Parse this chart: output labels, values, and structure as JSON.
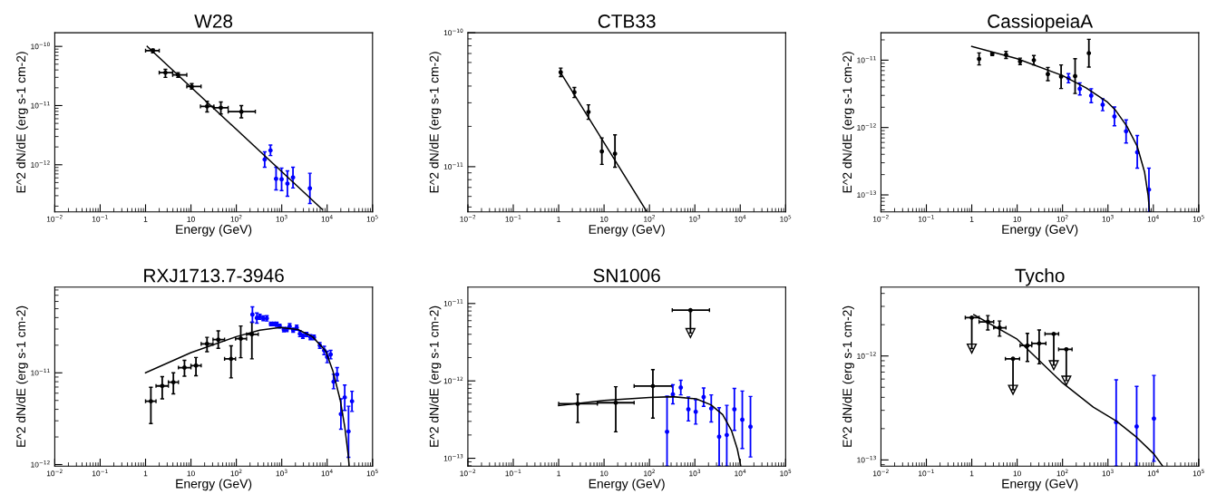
{
  "chart_data": [
    {
      "type": "scatter",
      "marker": "circle",
      "title": "W28",
      "xlabel": "Energy (GeV)",
      "ylabel": "E^2 dN/dE (erg s-1 cm-2)",
      "log": "xy",
      "xlim": [
        0.01,
        100000
      ],
      "ylim": [
        1.6e-13,
        1.7e-10
      ],
      "xticks": [
        {
          "value": 0.01,
          "label": "10$^{−2}$"
        },
        {
          "value": 0.1,
          "label": "10$^{−1}$"
        },
        1,
        10,
        {
          "value": 100,
          "label": "10$^{2}$"
        },
        {
          "value": 1000,
          "label": "10$^{3}$"
        },
        {
          "value": 10000,
          "label": "10$^{4}$"
        },
        {
          "value": 100000,
          "label": "10$^{5}$"
        }
      ],
      "yticks": [
        {
          "value": 1e-12,
          "label": "10$^{−12}$"
        },
        {
          "value": 1e-11,
          "label": "10$^{−11}$"
        },
        {
          "value": 1e-10,
          "label": "10$^{−10}$"
        }
      ],
      "series": [
        {
          "type": "scatter",
          "color": "#000000",
          "x": [
            1.45,
            2.74,
            5.2,
            10.4,
            22.7,
            45.6,
            129
          ],
          "values": [
            8.5e-11,
            3.6e-11,
            3.3e-11,
            2.1e-11,
            9.7e-12,
            9.2e-12,
            7.9e-12
          ],
          "errors": [
            [
              7.8e-11,
              9e-11
            ],
            [
              3e-11,
              4.1e-11
            ],
            [
              3e-11,
              3.6e-11
            ],
            [
              1.9e-11,
              2.35e-11
            ],
            [
              7.8e-12,
              1.18e-11
            ],
            [
              7.2e-12,
              1.15e-11
            ],
            [
              6.2e-12,
              1e-11
            ]
          ],
          "xerrors": [
            [
              1.0,
              2.0
            ],
            [
              2.0,
              3.96
            ],
            [
              3.96,
              8.1
            ],
            [
              8.1,
              16.7
            ],
            [
              16.2,
              32
            ],
            [
              32,
              66
            ],
            [
              66,
              262
            ]
          ]
        },
        {
          "type": "scatter",
          "color": "#0000ff",
          "x": [
            421,
            565,
            750,
            993,
            1334,
            1770,
            4170
          ],
          "values": [
            1.23e-12,
            1.75e-12,
            5.8e-13,
            5.7e-13,
            4.8e-13,
            6.1e-13,
            4e-13
          ],
          "errors": [
            [
              9.1e-13,
              1.65e-12
            ],
            [
              1.43e-12,
              2.15e-12
            ],
            [
              3.76e-13,
              9.1e-13
            ],
            [
              3.67e-13,
              8.8e-13
            ],
            [
              2.94e-13,
              7.9e-13
            ],
            [
              4.06e-13,
              9.1e-13
            ],
            [
              2.22e-13,
              7.2e-13
            ]
          ]
        },
        {
          "type": "line",
          "marker": "none",
          "color": "#000000",
          "x": [
            1.09,
            7800
          ],
          "values": [
            1e-10,
            1.76e-13
          ]
        }
      ]
    },
    {
      "type": "scatter",
      "marker": "circle",
      "title": "CTB33",
      "xlabel": "Energy (GeV)",
      "ylabel": "E^2 dN/dE (erg s-1 cm-2)",
      "log": "xy",
      "xlim": [
        0.01,
        100000
      ],
      "ylim": [
        4.6e-12,
        1e-10
      ],
      "xticks": [
        {
          "value": 0.01,
          "label": "10$^{−2}$"
        },
        {
          "value": 0.1,
          "label": "10$^{−1}$"
        },
        1,
        10,
        {
          "value": 100,
          "label": "10$^{2}$"
        },
        {
          "value": 1000,
          "label": "10$^{3}$"
        },
        {
          "value": 10000,
          "label": "10$^{4}$"
        },
        {
          "value": 100000,
          "label": "10$^{5}$"
        }
      ],
      "yticks": [
        {
          "value": 1e-11,
          "label": "10$^{−11}$"
        },
        {
          "value": 1e-10,
          "label": "10$^{−10}$"
        }
      ],
      "series": [
        {
          "type": "scatter",
          "color": "#000000",
          "x": [
            1.11,
            2.22,
            4.53,
            8.95,
            17.4
          ],
          "values": [
            5.07e-11,
            3.6e-11,
            2.56e-11,
            1.3e-11,
            1.25e-11
          ],
          "errors": [
            [
              4.71e-11,
              5.45e-11
            ],
            [
              3.28e-11,
              3.9e-11
            ],
            [
              2.26e-11,
              2.9e-11
            ],
            [
              1.04e-11,
              1.64e-11
            ],
            [
              9.9e-12,
              1.73e-11
            ]
          ]
        },
        {
          "type": "line",
          "marker": "none",
          "color": "#000000",
          "x": [
            1.08,
            85
          ],
          "values": [
            5.1e-11,
            4.69e-12
          ]
        }
      ]
    },
    {
      "type": "scatter",
      "marker": "circle",
      "title": "CassiopeiaA",
      "xlabel": "Energy (GeV)",
      "ylabel": "E^2 dN/dE (erg s-1 cm-2)",
      "log": "xy",
      "xlim": [
        0.01,
        100000
      ],
      "ylim": [
        5.6e-14,
        2.55e-11
      ],
      "xticks": [
        {
          "value": 0.01,
          "label": "10$^{−2}$"
        },
        {
          "value": 0.1,
          "label": "10$^{−1}$"
        },
        1,
        10,
        {
          "value": 100,
          "label": "10$^{2}$"
        },
        {
          "value": 1000,
          "label": "10$^{3}$"
        },
        {
          "value": 10000,
          "label": "10$^{4}$"
        },
        {
          "value": 100000,
          "label": "10$^{5}$"
        }
      ],
      "yticks": [
        {
          "value": 1e-13,
          "label": "10$^{−13}$"
        },
        {
          "value": 1e-12,
          "label": "10$^{−12}$"
        },
        {
          "value": 1e-11,
          "label": "10$^{−11}$"
        }
      ],
      "series": [
        {
          "type": "scatter",
          "color": "#000000",
          "x": [
            1.45,
            2.83,
            5.69,
            11.6,
            23.3,
            47.5,
            93,
            189,
            380
          ],
          "values": [
            1.04e-11,
            1.24e-11,
            1.2e-11,
            9.6e-12,
            1e-11,
            6.2e-12,
            5.7e-12,
            5.8e-12,
            1.27e-11
          ],
          "errors": [
            [
              8.5e-12,
              1.28e-11
            ],
            [
              1.17e-11,
              1.31e-11
            ],
            [
              1.06e-11,
              1.35e-11
            ],
            [
              8.6e-12,
              1.07e-11
            ],
            [
              8.5e-12,
              1.17e-11
            ],
            [
              4.95e-12,
              7.8e-12
            ],
            [
              3.8e-12,
              8.5e-12
            ],
            [
              3.2e-12,
              1.05e-11
            ],
            [
              7.9e-12,
              2.04e-11
            ]
          ]
        },
        {
          "type": "scatter",
          "color": "#0000ff",
          "x": [
            135,
            240,
            428,
            765,
            1390,
            2510,
            4420,
            8000
          ],
          "values": [
            5.4e-12,
            3.75e-12,
            2.97e-12,
            2.18e-12,
            1.46e-12,
            8.8e-13,
            4.3e-13,
            1.2e-13
          ],
          "errors": [
            [
              4.6e-12,
              6.3e-12
            ],
            [
              3.04e-12,
              4.6e-12
            ],
            [
              2.34e-12,
              3.77e-12
            ],
            [
              1.78e-12,
              2.68e-12
            ],
            [
              1.06e-12,
              2.02e-12
            ],
            [
              5.9e-13,
              1.3e-12
            ],
            [
              2.5e-13,
              7.6e-13
            ],
            [
              5.6e-14,
              2.5e-13
            ]
          ]
        },
        {
          "type": "line",
          "marker": "none",
          "color": "#000000",
          "x": [
            1,
            10,
            100,
            328,
            977,
            1445,
            2620,
            4420,
            6400,
            7650,
            8240
          ],
          "values": [
            1.6e-11,
            1.05e-11,
            5.9e-12,
            3.88e-12,
            2.38e-12,
            1.83e-12,
            1.04e-12,
            5.25e-13,
            2.19e-13,
            1e-13,
            5.7e-14
          ]
        }
      ]
    },
    {
      "type": "scatter",
      "marker": "circle",
      "title": "RXJ1713.7-3946",
      "xlabel": "Energy (GeV)",
      "ylabel": "E^2 dN/dE (erg s-1 cm-2)",
      "log": "xy",
      "xlim": [
        0.01,
        100000
      ],
      "ylim": [
        9.6e-13,
        8.6e-11
      ],
      "xticks": [
        {
          "value": 0.01,
          "label": "10$^{−2}$"
        },
        {
          "value": 0.1,
          "label": "10$^{−1}$"
        },
        1,
        10,
        {
          "value": 100,
          "label": "10$^{2}$"
        },
        {
          "value": 1000,
          "label": "10$^{3}$"
        },
        {
          "value": 10000,
          "label": "10$^{4}$"
        },
        {
          "value": 100000,
          "label": "10$^{5}$"
        }
      ],
      "yticks": [
        {
          "value": 1e-12,
          "label": "10$^{−12}$"
        },
        {
          "value": 1e-11,
          "label": "10$^{−11}$"
        }
      ],
      "series": [
        {
          "type": "scatter",
          "color": "#000000",
          "x": [
            1.31,
            2.33,
            4.1,
            7.2,
            12.9,
            22.6,
            40,
            76.5,
            125,
            220
          ],
          "values": [
            4.9e-12,
            7.2e-12,
            7.9e-12,
            1.14e-11,
            1.2e-11,
            2.07e-11,
            2.3e-11,
            1.42e-11,
            2.36e-11,
            2.63e-11
          ],
          "errors": [
            [
              2.8e-12,
              6.95e-12
            ],
            [
              5.2e-12,
              9.1e-12
            ],
            [
              5.9e-12,
              1e-11
            ],
            [
              9.2e-12,
              1.37e-11
            ],
            [
              9.3e-12,
              1.47e-11
            ],
            [
              1.7e-11,
              2.44e-11
            ],
            [
              1.85e-11,
              2.87e-11
            ],
            [
              8.8e-12,
              1.97e-11
            ],
            [
              1.46e-11,
              3.24e-11
            ],
            [
              1.42e-11,
              3.56e-11
            ]
          ],
          "xerrors": [
            [
              1,
              1.7
            ],
            [
              1.7,
              3.18
            ],
            [
              3.18,
              5.3
            ],
            [
              5.3,
              10
            ],
            [
              10,
              16.8
            ],
            [
              16.8,
              30.6
            ],
            [
              30.6,
              55
            ],
            [
              55,
              96
            ],
            [
              96,
              168
            ],
            [
              168,
              304
            ]
          ]
        },
        {
          "type": "scatter",
          "color": "#0000ff",
          "x": [
            226,
            283,
            328,
            392,
            469,
            577,
            670,
            777,
            901,
            1110,
            1288,
            1495,
            1785,
            2135,
            2510,
            2915,
            3530,
            4290,
            5130,
            6900,
            8610,
            10000,
            11950,
            13860,
            16560,
            20100,
            24400,
            29600,
            35300
          ],
          "values": [
            4.32e-11,
            3.96e-11,
            4.08e-11,
            3.93e-11,
            3.93e-11,
            3.41e-11,
            3.41e-11,
            3.37e-11,
            3.23e-11,
            2.96e-11,
            2.97e-11,
            3.22e-11,
            2.92e-11,
            3.1e-11,
            2.67e-11,
            2.52e-11,
            2.62e-11,
            2.45e-11,
            2.43e-11,
            1.99e-11,
            1.76e-11,
            1.49e-11,
            1.59e-11,
            8e-12,
            9.6e-12,
            3.55e-12,
            5.4e-12,
            2.3e-12,
            4.9e-12
          ],
          "errors": [
            [
              3.56e-11,
              5.24e-11
            ],
            [
              3.48e-11,
              4.5e-11
            ],
            [
              3.83e-11,
              4.34e-11
            ],
            [
              3.7e-11,
              4.18e-11
            ],
            [
              3.67e-11,
              4.2e-11
            ],
            [
              3.26e-11,
              3.56e-11
            ],
            [
              3.26e-11,
              3.56e-11
            ],
            [
              3.2e-11,
              3.56e-11
            ],
            [
              3.08e-11,
              3.39e-11
            ],
            [
              2.8e-11,
              3.13e-11
            ],
            [
              2.82e-11,
              3.13e-11
            ],
            [
              3.02e-11,
              3.44e-11
            ],
            [
              2.76e-11,
              3.08e-11
            ],
            [
              2.91e-11,
              3.31e-11
            ],
            [
              2.48e-11,
              2.87e-11
            ],
            [
              2.37e-11,
              2.67e-11
            ],
            [
              2.48e-11,
              2.76e-11
            ],
            [
              2.3e-11,
              2.6e-11
            ],
            [
              2.3e-11,
              2.57e-11
            ],
            [
              1.85e-11,
              2.14e-11
            ],
            [
              1.58e-11,
              1.95e-11
            ],
            [
              1.29e-11,
              1.72e-11
            ],
            [
              1.42e-11,
              1.76e-11
            ],
            [
              6.7e-12,
              9.64e-12
            ],
            [
              8.16e-12,
              1.14e-11
            ],
            [
              2.43e-12,
              5.2e-12
            ],
            [
              3.9e-12,
              7.37e-12
            ],
            [
              1.2e-12,
              4.33e-12
            ],
            [
              3.8e-12,
              6.3e-12
            ]
          ]
        },
        {
          "type": "line",
          "marker": "none",
          "color": "#000000",
          "x": [
            1,
            10,
            100,
            328,
            929,
            2265,
            4750,
            9290,
            13450,
            19500,
            24400,
            29200,
            30500
          ],
          "values": [
            1e-11,
            1.66e-11,
            2.48e-11,
            2.91e-11,
            3.13e-11,
            2.97e-11,
            2.48e-11,
            1.73e-11,
            1.04e-11,
            5e-12,
            2.6e-12,
            1.26e-12,
            9.6e-13
          ]
        }
      ]
    },
    {
      "type": "scatter",
      "marker": "circle",
      "title": "SN1006",
      "xlabel": "Energy (GeV)",
      "ylabel": "E^2 dN/dE (erg s-1 cm-2)",
      "log": "xy",
      "xlim": [
        0.01,
        100000
      ],
      "ylim": [
        7.9e-14,
        1.63e-11
      ],
      "xticks": [
        {
          "value": 0.01,
          "label": "10$^{−2}$"
        },
        {
          "value": 0.1,
          "label": "10$^{−1}$"
        },
        1,
        10,
        {
          "value": 100,
          "label": "10$^{2}$"
        },
        {
          "value": 1000,
          "label": "10$^{3}$"
        },
        {
          "value": 10000,
          "label": "10$^{4}$"
        },
        {
          "value": 100000,
          "label": "10$^{5}$"
        }
      ],
      "yticks": [
        {
          "value": 1e-13,
          "label": "10$^{−13}$"
        },
        {
          "value": 1e-12,
          "label": "10$^{−12}$"
        },
        {
          "value": 1e-11,
          "label": "10$^{−11}$"
        }
      ],
      "series": [
        {
          "type": "scatter",
          "color": "#000000",
          "x": [
            2.63,
            18.1,
            119
          ],
          "values": [
            5.06e-13,
            5.23e-13,
            8.58e-13
          ],
          "errors": [
            [
              2.9e-13,
              6.76e-13
            ],
            [
              2.2e-13,
              8.4e-13
            ],
            [
              3.3e-13,
              1.4e-12
            ]
          ],
          "xerrors": [
            [
              1,
              7.1
            ],
            [
              7.1,
              46
            ],
            [
              46,
              318
            ]
          ]
        },
        {
          "type": "scatter",
          "color": "#000000",
          "x": [
            800
          ],
          "values": [
            8.2e-12
          ],
          "errors": [
            [
              4.16e-12,
              8.2e-12
            ]
          ],
          "xerrors": [
            [
              318,
              2100
            ]
          ]
        },
        {
          "type": "scatter",
          "color": "#0000ff",
          "x": [
            244,
            328,
            490,
            721,
            1045,
            1563,
            2297,
            3430,
            5050,
            7430,
            11100,
            16800
          ],
          "values": [
            2.2e-13,
            6.7e-13,
            8.2e-13,
            4.3e-13,
            4e-13,
            6.2e-13,
            4.4e-13,
            1.9e-13,
            2e-13,
            4.3e-13,
            3.15e-13,
            2.56e-13
          ],
          "errors": [
            [
              7.9e-14,
              6.37e-13
            ],
            [
              5.06e-13,
              8.9e-13
            ],
            [
              6.6e-13,
              1.02e-12
            ],
            [
              3.04e-13,
              6.2e-13
            ],
            [
              2.76e-13,
              5.7e-13
            ],
            [
              4.7e-13,
              8.1e-13
            ],
            [
              2.95e-13,
              6.6e-13
            ],
            [
              7.9e-14,
              4.5e-13
            ],
            [
              7.9e-14,
              4.84e-13
            ],
            [
              2.3e-13,
              8e-13
            ],
            [
              1.34e-13,
              7.4e-13
            ],
            [
              1.04e-13,
              6.3e-13
            ]
          ]
        },
        {
          "type": "line",
          "marker": "none",
          "color": "#000000",
          "x": [
            1,
            10,
            100,
            328,
            1070,
            2265,
            4100,
            6400,
            8610,
            10300
          ],
          "values": [
            4.8e-13,
            5.6e-13,
            6.1e-13,
            6.25e-13,
            5.85e-13,
            4.9e-13,
            3.66e-13,
            2.29e-13,
            1.32e-13,
            7.9e-14
          ]
        }
      ]
    },
    {
      "type": "scatter",
      "marker": "circle",
      "title": "Tycho",
      "xlabel": "Energy (GeV)",
      "ylabel": "E^2 dN/dE (erg s-1 cm-2)",
      "log": "xy",
      "xlim": [
        0.01,
        100000
      ],
      "ylim": [
        8.7e-14,
        4.6e-12
      ],
      "xticks": [
        {
          "value": 0.01,
          "label": "10$^{−2}$"
        },
        {
          "value": 0.1,
          "label": "10$^{−1}$"
        },
        1,
        10,
        {
          "value": 100,
          "label": "10$^{2}$"
        },
        {
          "value": 1000,
          "label": "10$^{3}$"
        },
        {
          "value": 10000,
          "label": "10$^{4}$"
        },
        {
          "value": 100000,
          "label": "10$^{5}$"
        }
      ],
      "yticks": [
        {
          "value": 1e-13,
          "label": "10$^{−13}$"
        },
        {
          "value": 1e-12,
          "label": "10$^{−12}$"
        }
      ],
      "series": [
        {
          "type": "scatter",
          "color": "#000000",
          "x": [
            2.26,
            4.1,
            16.8,
            30.5
          ],
          "values": [
            2.13e-12,
            1.87e-12,
            1.26e-12,
            1.32e-12
          ],
          "errors": [
            [
              1.78e-12,
              2.45e-12
            ],
            [
              1.55e-12,
              2.17e-12
            ],
            [
              8.85e-13,
              1.65e-12
            ],
            [
              8.4e-13,
              1.78e-12
            ]
          ],
          "xerrors": [
            [
              1.45,
              3.04
            ],
            [
              3.04,
              5.68
            ],
            [
              11.6,
              21
            ],
            [
              21,
              43
            ]
          ]
        },
        {
          "type": "scatter",
          "color": "#000000",
          "x": [
            1.0,
            8.1,
            64,
            121
          ],
          "values": [
            2.34e-12,
            9.4e-13,
            1.63e-12,
            1.16e-12
          ],
          "errors": [
            [
              1.18e-12,
              2.34e-12
            ],
            [
              4.73e-13,
              9.4e-13
            ],
            [
              8.15e-13,
              1.63e-12
            ],
            [
              5.8e-13,
              1.16e-12
            ]
          ],
          "xerrors": [
            [
              0.72,
              1.45
            ],
            [
              5.5,
              11.3
            ],
            [
              41,
              82
            ],
            [
              82,
              162
            ]
          ]
        },
        {
          "type": "scatter",
          "color": "#0000ff",
          "x": [
            1517,
            4290,
            10300
          ],
          "values": [
            2.3e-13,
            2.1e-13,
            2.5e-13
          ],
          "errors": [
            [
              8.7e-14,
              5.9e-13
            ],
            [
              8.7e-14,
              5.1e-13
            ],
            [
              9.7e-14,
              6.5e-13
            ]
          ]
        },
        {
          "type": "line",
          "marker": "none",
          "color": "#000000",
          "x": [
            1.11,
            10,
            100,
            475,
            1517,
            4290,
            10300,
            16100
          ],
          "values": [
            2.49e-12,
            1.45e-12,
            5.5e-13,
            3.22e-13,
            2.37e-13,
            1.65e-13,
            1.14e-13,
            8.7e-14
          ]
        }
      ]
    }
  ]
}
